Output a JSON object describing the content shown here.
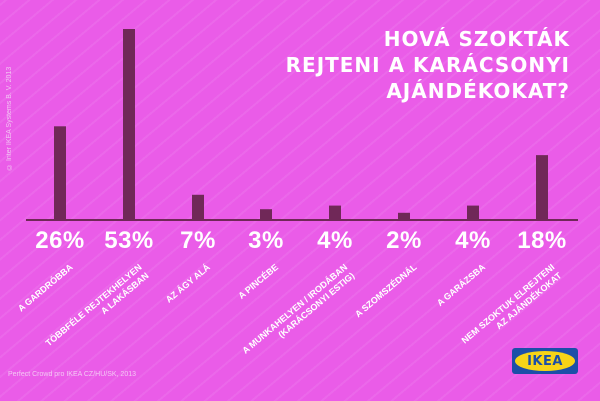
{
  "title_lines": [
    "HOVÁ SZOKTÁK",
    "REJTENI A KARÁCSONYI",
    "AJÁNDÉKOKAT?"
  ],
  "copyright": "© Inter IKEA Systems B. V. 2013",
  "footer": "Perfect Crowd pro IKEA CZ/HU/SK, 2013",
  "logo_text": "IKEA",
  "colors": {
    "background": "#ea5ce8",
    "bar": "#702858",
    "axis": "#702858",
    "text": "#ffffff",
    "logo_blue": "#1c4fa8",
    "logo_yellow": "#f7d417"
  },
  "chart_data": {
    "type": "bar",
    "categories": [
      [
        "A GARDRÓBBA"
      ],
      [
        "TÖBBFÉLE REJTEKHELYEN",
        "A LAKÁSBAN"
      ],
      [
        "AZ ÁGY ALÁ"
      ],
      [
        "A PINCÉBE"
      ],
      [
        "A MUNKAHELYEN / IRODÁBAN",
        "(KARÁCSONYI ESTIG)"
      ],
      [
        "A SZOMSZÉDNÁL"
      ],
      [
        "A GARÁZSBA"
      ],
      [
        "NEM SZOKTUK ELREJTENI",
        "AZ AJÁNDÉKOKAT"
      ]
    ],
    "values": [
      26,
      53,
      7,
      3,
      4,
      2,
      4,
      18
    ],
    "value_labels": [
      "26%",
      "53%",
      "7%",
      "3%",
      "4%",
      "2%",
      "4%",
      "18%"
    ],
    "ylim": [
      0,
      53
    ],
    "grid": false,
    "legend": "none"
  }
}
